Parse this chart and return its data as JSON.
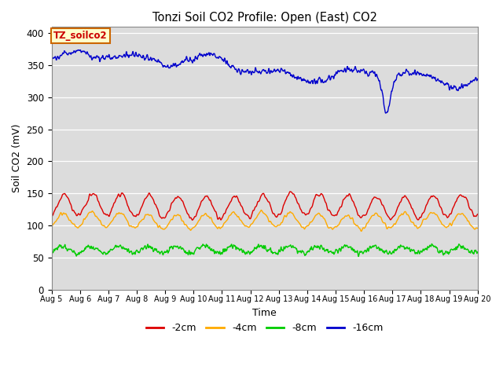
{
  "title": "Tonzi Soil CO2 Profile: Open (East) CO2",
  "xlabel": "Time",
  "ylabel": "Soil CO2 (mV)",
  "ylim": [
    0,
    410
  ],
  "yticks": [
    0,
    50,
    100,
    150,
    200,
    250,
    300,
    350,
    400
  ],
  "background_color": "#dcdcdc",
  "figure_background": "#ffffff",
  "legend_label": "TZ_soilco2",
  "series": [
    {
      "label": "-2cm",
      "color": "#dd0000",
      "lw": 1.0
    },
    {
      "label": "-4cm",
      "color": "#ffaa00",
      "lw": 1.0
    },
    {
      "label": "-8cm",
      "color": "#00cc00",
      "lw": 1.0
    },
    {
      "label": "-16cm",
      "color": "#0000cc",
      "lw": 1.0
    }
  ],
  "xstart_day": 5,
  "xend_day": 20,
  "n_points": 2160,
  "seed": 99
}
